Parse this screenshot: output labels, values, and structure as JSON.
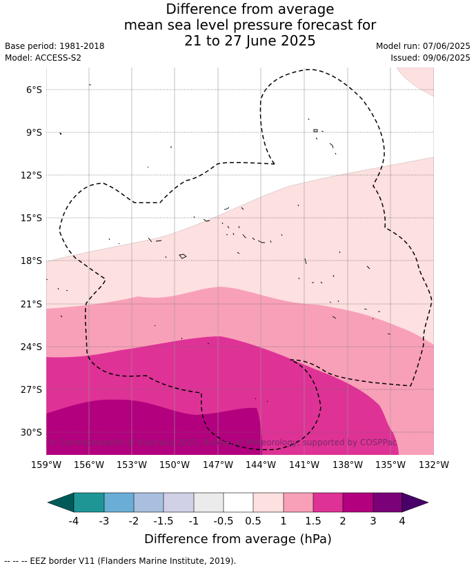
{
  "title": {
    "line1": "Difference from average",
    "line2": "mean sea level pressure forecast for",
    "line3": "21 to 27 June 2025"
  },
  "meta": {
    "base_period": "Base period: 1981-2018",
    "model": "Model: ACCESS-S2",
    "model_run": "Model run: 07/06/2025",
    "issued": "Issued: 09/06/2025"
  },
  "map": {
    "lat_labels": [
      "6°S",
      "9°S",
      "12°S",
      "15°S",
      "18°S",
      "21°S",
      "24°S",
      "27°S",
      "30°S"
    ],
    "lon_labels": [
      "159°W",
      "156°W",
      "153°W",
      "150°W",
      "147°W",
      "144°W",
      "141°W",
      "138°W",
      "135°W",
      "132°W"
    ],
    "copyright": "© Commonwealth of Australia 2025, Bureau of Meteorology, supported by COSPPac",
    "colors": {
      "band_0_to_0_5": "#ffffff",
      "band_0_5_to_1": "#fde0e0",
      "band_1_to_1_5": "#f8a0b8",
      "band_1_5_to_2": "#de3296",
      "band_2_to_3": "#b3007e",
      "eez_line": "#000000"
    }
  },
  "legend": {
    "tick_labels": [
      "-4",
      "-3",
      "-2",
      "-1.5",
      "-1",
      "-0.5",
      "0.5",
      "1",
      "1.5",
      "2",
      "3",
      "4"
    ],
    "title": "Difference from average (hPa)",
    "colors": [
      "#005a5a",
      "#1e9696",
      "#6aaed6",
      "#a8bfdf",
      "#d0d1e6",
      "#ebebeb",
      "#ffffff",
      "#fde0e0",
      "#f8a0b8",
      "#de3296",
      "#b3007e",
      "#7a0177",
      "#49006a"
    ]
  },
  "footnote": "--  --  -- EEZ border V11 (Flanders Marine Institute, 2019)."
}
